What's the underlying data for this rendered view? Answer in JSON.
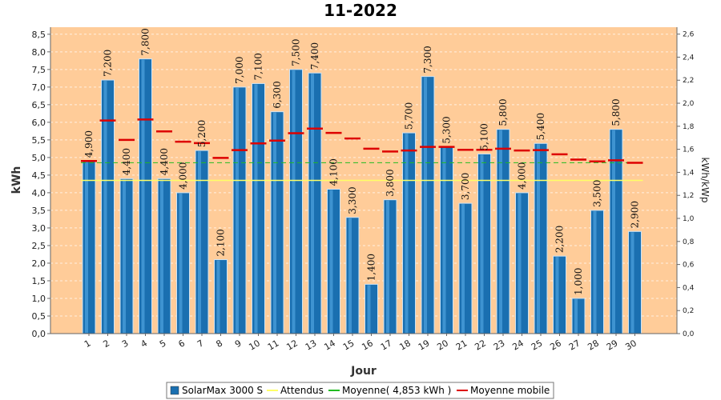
{
  "chart_data": {
    "type": "bar",
    "title": "11-2022",
    "xlabel": "Jour",
    "ylabel": "kWh",
    "y2label": "kWh/kWp",
    "ylim": [
      0,
      8.7
    ],
    "y2lim": [
      0,
      2.66
    ],
    "yticks": [
      "0,0",
      "0,5",
      "1,0",
      "1,5",
      "2,0",
      "2,5",
      "3,0",
      "3,5",
      "4,0",
      "4,5",
      "5,0",
      "5,5",
      "6,0",
      "6,5",
      "7,0",
      "7,5",
      "8,0",
      "8,5"
    ],
    "y2ticks": [
      "0,0",
      "0,2",
      "0,4",
      "0,6",
      "0,8",
      "1,0",
      "1,2",
      "1,4",
      "1,6",
      "1,8",
      "2,0",
      "2,2",
      "2,4",
      "2,6"
    ],
    "categories": [
      "1",
      "2",
      "3",
      "4",
      "5",
      "6",
      "7",
      "8",
      "9",
      "10",
      "11",
      "12",
      "13",
      "14",
      "15",
      "16",
      "17",
      "18",
      "19",
      "20",
      "21",
      "22",
      "23",
      "24",
      "25",
      "26",
      "27",
      "28",
      "29",
      "30"
    ],
    "series": [
      {
        "name": "SolarMax 3000 S",
        "values": [
          4.9,
          7.2,
          4.4,
          7.8,
          4.4,
          4.0,
          5.2,
          2.1,
          7.0,
          7.1,
          6.3,
          7.5,
          7.4,
          4.1,
          3.3,
          1.4,
          3.8,
          5.7,
          7.3,
          5.3,
          3.7,
          5.1,
          5.8,
          4.0,
          5.4,
          2.2,
          1.0,
          3.5,
          5.8,
          2.9
        ],
        "labels": [
          "4,900",
          "7,200",
          "4,400",
          "7,800",
          "4,400",
          "4,000",
          "5,200",
          "2,100",
          "7,000",
          "7,100",
          "6,300",
          "7,500",
          "7,400",
          "4,100",
          "3,300",
          "1,400",
          "3,800",
          "5,700",
          "7,300",
          "5,300",
          "3,700",
          "5,100",
          "5,800",
          "4,000",
          "5,400",
          "2,200",
          "1,000",
          "3,500",
          "5,800",
          "2,900"
        ],
        "color": "#1a6fb0"
      },
      {
        "name": "Attendus",
        "value": 4.35,
        "color": "#ffff66"
      },
      {
        "name": "Moyenne( 4,853 kWh )",
        "value": 4.853,
        "color": "#22bb22"
      },
      {
        "name": "Moyenne mobile",
        "values": [
          4.9,
          6.05,
          5.5,
          6.08,
          5.74,
          5.45,
          5.41,
          4.99,
          5.21,
          5.4,
          5.48,
          5.69,
          5.82,
          5.7,
          5.54,
          5.25,
          5.17,
          5.2,
          5.3,
          5.3,
          5.22,
          5.22,
          5.25,
          5.2,
          5.21,
          5.09,
          4.94,
          4.89,
          4.92,
          4.85
        ],
        "color": "#dd0000"
      }
    ],
    "legend_placement": "bottom",
    "grid": true,
    "background": "#ffcc99"
  }
}
